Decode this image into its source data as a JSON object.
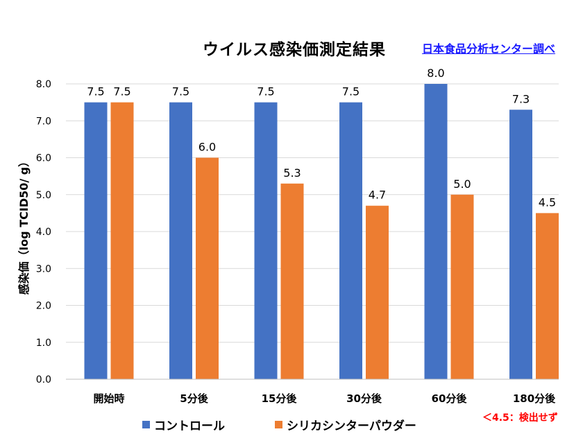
{
  "title": "ウイルス感染価測定結果",
  "source": "日本食品分析センター調べ",
  "note": "＜4.5：検出せず",
  "colors": {
    "control": "#4472c4",
    "silica": "#ed7d31",
    "grid": "#d9d9d9",
    "note": "#ff0000",
    "source": "#1a1aff"
  },
  "chart_data": {
    "type": "bar",
    "ylabel": "感染価（log TCID50/ g）",
    "xlabel": "",
    "ylim": [
      0,
      8
    ],
    "ytick_step": 1,
    "yticks": [
      "0.0",
      "1.0",
      "2.0",
      "3.0",
      "4.0",
      "5.0",
      "6.0",
      "7.0",
      "8.0"
    ],
    "grid": true,
    "legend": "bottom",
    "categories": [
      "開始時",
      "5分後",
      "15分後",
      "30分後",
      "60分後",
      "180分後"
    ],
    "series": [
      {
        "name": "コントロール",
        "color": "#4472c4",
        "values": [
          7.5,
          7.5,
          7.5,
          7.5,
          8.0,
          7.3
        ],
        "labels": [
          "7.5",
          "7.5",
          "7.5",
          "7.5",
          "8.0",
          "7.3"
        ]
      },
      {
        "name": "シリカシンターパウダー",
        "color": "#ed7d31",
        "values": [
          7.5,
          6.0,
          5.3,
          4.7,
          5.0,
          4.5
        ],
        "labels": [
          "7.5",
          "6.0",
          "5.3",
          "4.7",
          "5.0",
          "4.5"
        ]
      }
    ]
  }
}
